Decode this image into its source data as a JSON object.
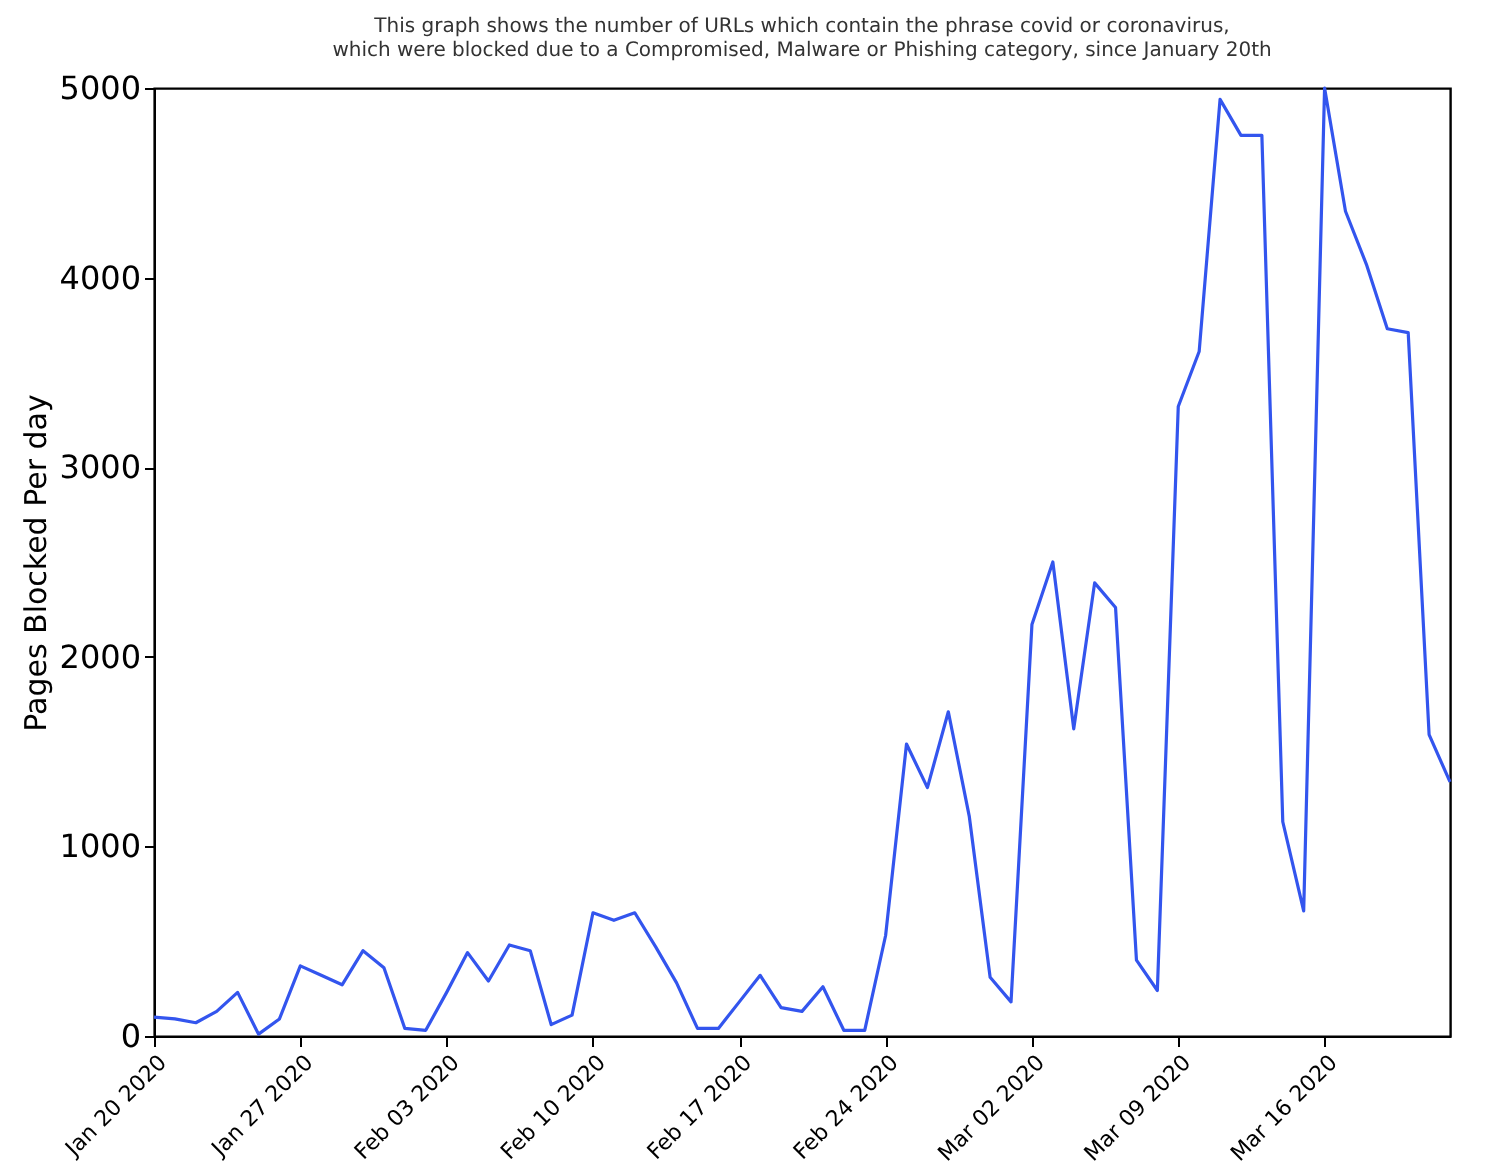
{
  "chart_data": {
    "type": "line",
    "title": "This graph shows the number of URLs which contain the phrase covid or coronavirus,\nwhich were blocked due to a Compromised, Malware or Phishing category, since January 20th",
    "ylabel": "Pages Blocked Per day",
    "x": [
      "2020-01-20",
      "2020-01-21",
      "2020-01-22",
      "2020-01-23",
      "2020-01-24",
      "2020-01-25",
      "2020-01-26",
      "2020-01-27",
      "2020-01-28",
      "2020-01-29",
      "2020-01-30",
      "2020-01-31",
      "2020-02-01",
      "2020-02-02",
      "2020-02-03",
      "2020-02-04",
      "2020-02-05",
      "2020-02-06",
      "2020-02-07",
      "2020-02-08",
      "2020-02-09",
      "2020-02-10",
      "2020-02-11",
      "2020-02-12",
      "2020-02-13",
      "2020-02-14",
      "2020-02-15",
      "2020-02-16",
      "2020-02-17",
      "2020-02-18",
      "2020-02-19",
      "2020-02-20",
      "2020-02-21",
      "2020-02-22",
      "2020-02-23",
      "2020-02-24",
      "2020-02-25",
      "2020-02-26",
      "2020-02-27",
      "2020-02-28",
      "2020-02-29",
      "2020-03-01",
      "2020-03-02",
      "2020-03-03",
      "2020-03-04",
      "2020-03-05",
      "2020-03-06",
      "2020-03-07",
      "2020-03-08",
      "2020-03-09",
      "2020-03-10",
      "2020-03-11",
      "2020-03-12",
      "2020-03-13",
      "2020-03-14",
      "2020-03-15",
      "2020-03-16",
      "2020-03-17",
      "2020-03-18",
      "2020-03-19",
      "2020-03-20",
      "2020-03-21",
      "2020-03-22"
    ],
    "series": [
      {
        "color": "#3355ee",
        "values": [
          100,
          90,
          70,
          130,
          230,
          10,
          90,
          370,
          320,
          270,
          450,
          360,
          40,
          30,
          230,
          440,
          290,
          480,
          450,
          60,
          110,
          650,
          610,
          650,
          470,
          280,
          40,
          40,
          180,
          320,
          150,
          130,
          260,
          30,
          30,
          530,
          1540,
          1310,
          1710,
          1160,
          310,
          180,
          2170,
          2500,
          1620,
          2390,
          2260,
          400,
          240,
          3320,
          3610,
          4940,
          4750,
          4750,
          1130,
          660,
          5000,
          4350,
          4070,
          3730,
          3710,
          1590,
          1340
        ]
      }
    ],
    "xlim": [
      "2020-01-20",
      "2020-03-22"
    ],
    "xticks": [
      {
        "value": "2020-01-20",
        "label": "Jan 20 2020"
      },
      {
        "value": "2020-01-27",
        "label": "Jan 27 2020"
      },
      {
        "value": "2020-02-03",
        "label": "Feb 03 2020"
      },
      {
        "value": "2020-02-10",
        "label": "Feb 10 2020"
      },
      {
        "value": "2020-02-17",
        "label": "Feb 17 2020"
      },
      {
        "value": "2020-02-24",
        "label": "Feb 24 2020"
      },
      {
        "value": "2020-03-02",
        "label": "Mar 02 2020"
      },
      {
        "value": "2020-03-09",
        "label": "Mar 09 2020"
      },
      {
        "value": "2020-03-16",
        "label": "Mar 16 2020"
      }
    ],
    "ylim": [
      0,
      5000
    ],
    "yticks": [
      0,
      1000,
      2000,
      3000,
      4000,
      5000
    ],
    "grid": false,
    "marker": "none",
    "line_style": "solid"
  }
}
